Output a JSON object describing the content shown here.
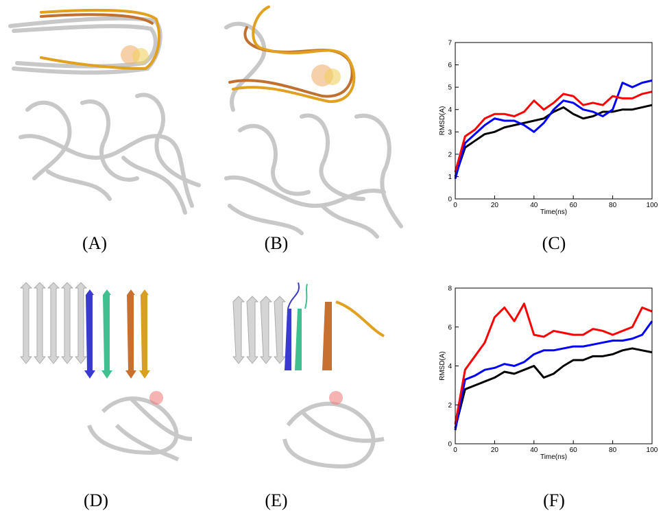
{
  "panel_labels": [
    "(A)",
    "(B)",
    "(C)",
    "(D)",
    "(E)",
    "(F)"
  ],
  "chart_data": [
    {
      "type": "line",
      "xlabel": "Time(ns)",
      "ylabel": "RMSD(A)",
      "x": [
        0,
        5,
        10,
        15,
        20,
        25,
        30,
        35,
        40,
        45,
        50,
        55,
        60,
        65,
        70,
        75,
        80,
        85,
        90,
        95,
        100
      ],
      "xlim": [
        0,
        100
      ],
      "xticks": [
        0,
        20,
        40,
        60,
        80,
        100
      ],
      "ylim": [
        0,
        7
      ],
      "yticks": [
        0,
        1,
        2,
        3,
        4,
        5,
        6,
        7
      ],
      "series": [
        {
          "color": "#000000",
          "values": [
            1,
            2.3,
            2.6,
            2.9,
            3.0,
            3.2,
            3.3,
            3.4,
            3.5,
            3.6,
            3.9,
            4.1,
            3.8,
            3.6,
            3.7,
            3.9,
            3.9,
            4.0,
            4.0,
            4.1,
            4.2
          ]
        },
        {
          "color": "#0000ff",
          "values": [
            0.9,
            2.5,
            2.9,
            3.3,
            3.6,
            3.5,
            3.5,
            3.3,
            3.0,
            3.4,
            4.0,
            4.4,
            4.3,
            4.0,
            3.9,
            3.7,
            4.0,
            5.2,
            5.0,
            5.2,
            5.3
          ]
        },
        {
          "color": "#ff0000",
          "values": [
            1.2,
            2.8,
            3.1,
            3.6,
            3.8,
            3.8,
            3.7,
            3.9,
            4.4,
            4.0,
            4.3,
            4.7,
            4.6,
            4.2,
            4.3,
            4.2,
            4.6,
            4.5,
            4.5,
            4.7,
            4.8
          ]
        }
      ]
    },
    {
      "type": "line",
      "xlabel": "Time(ns)",
      "ylabel": "RMSD(A)",
      "x": [
        0,
        5,
        10,
        15,
        20,
        25,
        30,
        35,
        40,
        45,
        50,
        55,
        60,
        65,
        70,
        75,
        80,
        85,
        90,
        95,
        100
      ],
      "xlim": [
        0,
        100
      ],
      "xticks": [
        0,
        20,
        40,
        60,
        80,
        100
      ],
      "ylim": [
        0,
        8
      ],
      "yticks": [
        0,
        2,
        4,
        6,
        8
      ],
      "series": [
        {
          "color": "#000000",
          "values": [
            0.8,
            2.8,
            3.0,
            3.2,
            3.4,
            3.7,
            3.6,
            3.8,
            4.0,
            3.4,
            3.6,
            4.0,
            4.3,
            4.3,
            4.5,
            4.5,
            4.6,
            4.8,
            4.9,
            4.8,
            4.7
          ]
        },
        {
          "color": "#0000ff",
          "values": [
            0.7,
            3.3,
            3.5,
            3.8,
            3.9,
            4.1,
            4.0,
            4.2,
            4.6,
            4.8,
            4.8,
            4.9,
            5.0,
            5.0,
            5.1,
            5.2,
            5.3,
            5.3,
            5.4,
            5.6,
            6.3
          ]
        },
        {
          "color": "#ff0000",
          "values": [
            1.0,
            3.8,
            4.5,
            5.2,
            6.5,
            7.0,
            6.3,
            7.2,
            5.6,
            5.5,
            5.8,
            5.7,
            5.6,
            5.6,
            5.9,
            5.8,
            5.6,
            5.8,
            6.0,
            7.0,
            6.8
          ]
        }
      ]
    }
  ]
}
